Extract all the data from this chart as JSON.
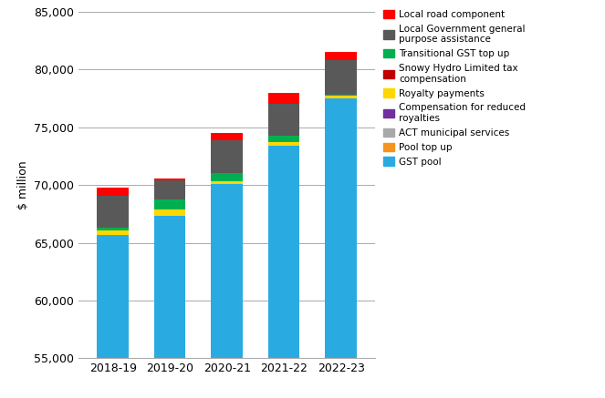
{
  "years": [
    "2018-19",
    "2019-20",
    "2020-21",
    "2021-22",
    "2022-23"
  ],
  "series": [
    {
      "label": "GST pool",
      "color": "#29ABE2",
      "values": [
        65700,
        67300,
        70100,
        73400,
        77500
      ]
    },
    {
      "label": "Pool top up",
      "color": "#F7941D",
      "values": [
        0,
        0,
        0,
        0,
        0
      ]
    },
    {
      "label": "ACT municipal services",
      "color": "#A9A9A9",
      "values": [
        0,
        0,
        0,
        0,
        0
      ]
    },
    {
      "label": "Compensation for reduced royalties",
      "color": "#7030A0",
      "values": [
        0,
        0,
        0,
        0,
        0
      ]
    },
    {
      "label": "Royalty payments",
      "color": "#FFD700",
      "values": [
        400,
        550,
        250,
        350,
        250
      ]
    },
    {
      "label": "Snowy Hydro Limited tax compensation",
      "color": "#C00000",
      "values": [
        0,
        0,
        0,
        0,
        0
      ]
    },
    {
      "label": "Transitional GST top up",
      "color": "#00B050",
      "values": [
        200,
        900,
        700,
        500,
        100
      ]
    },
    {
      "label": "Local Government general\npurpose assistance",
      "color": "#595959",
      "values": [
        2800,
        1700,
        2800,
        2800,
        3000
      ]
    },
    {
      "label": "Local road component",
      "color": "#FF0000",
      "values": [
        700,
        100,
        700,
        900,
        700
      ]
    }
  ],
  "ylim": [
    55000,
    85000
  ],
  "yticks": [
    55000,
    60000,
    65000,
    70000,
    75000,
    80000,
    85000
  ],
  "ylabel": "$ million",
  "background_color": "#FFFFFF",
  "grid_color": "#AAAAAA",
  "title": ""
}
